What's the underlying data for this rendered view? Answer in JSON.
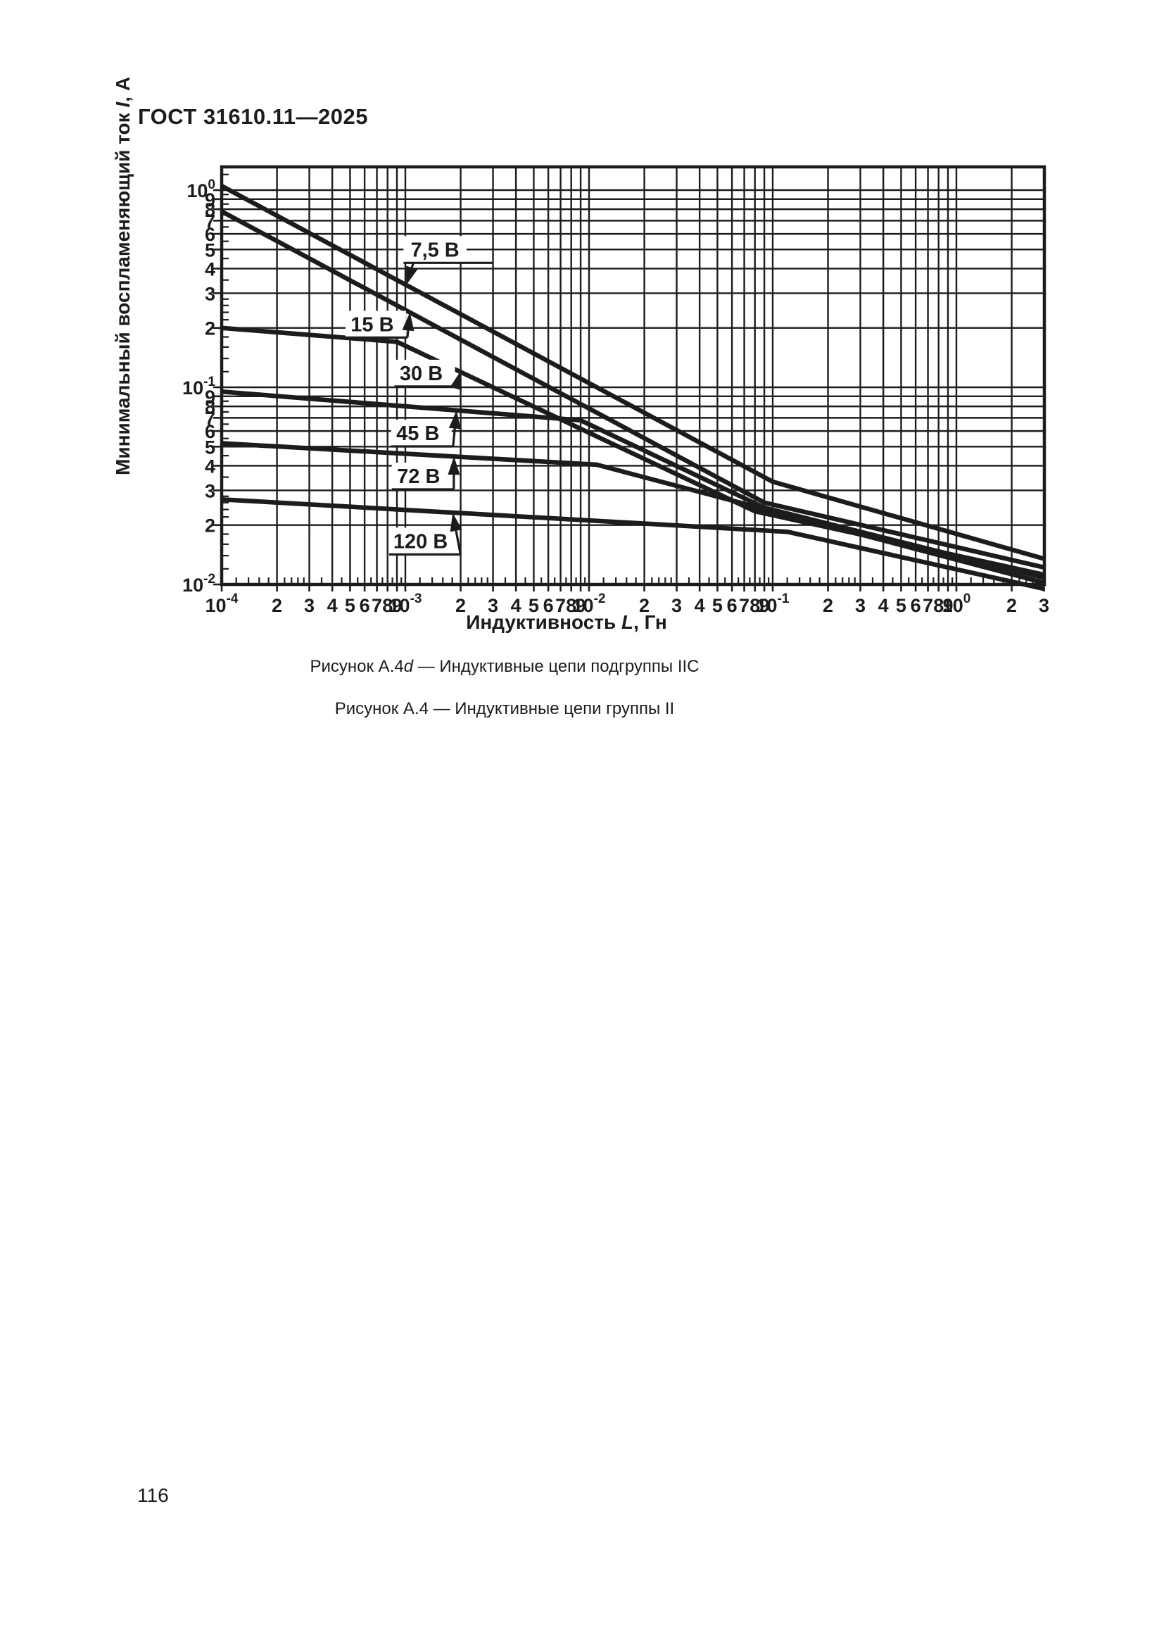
{
  "page": {
    "header": "ГОСТ 31610.11—2025",
    "page_number": "116",
    "captions": [
      {
        "prefix": "Рисунок А.4",
        "italic": "d",
        "suffix": " — Индуктивные цепи подгруппы IIC"
      },
      {
        "prefix": "Рисунок А.4",
        "italic": "",
        "suffix": " — Индуктивные цепи группы II"
      }
    ]
  },
  "colors": {
    "ink": "#1c1c1c",
    "paper": "#ffffff"
  },
  "chart_data": {
    "type": "line",
    "scale": "log-log",
    "grid": "on",
    "x_axis": {
      "title_prefix": "Индуктивность ",
      "title_var": "L",
      "title_suffix": ", Гн",
      "min": 0.0001,
      "max": 3,
      "ticks": [
        {
          "v": 0.0001,
          "t": "10",
          "e": "-4"
        },
        {
          "v": 0.0002,
          "t": "2"
        },
        {
          "v": 0.0003,
          "t": "3"
        },
        {
          "v": 0.0004,
          "t": "4"
        },
        {
          "v": 0.0005,
          "t": "5"
        },
        {
          "v": 0.0006,
          "t": "6"
        },
        {
          "v": 0.0007,
          "t": "7"
        },
        {
          "v": 0.0008,
          "t": "8"
        },
        {
          "v": 0.0009,
          "t": "9"
        },
        {
          "v": 0.001,
          "t": "10",
          "e": "-3"
        },
        {
          "v": 0.002,
          "t": "2"
        },
        {
          "v": 0.003,
          "t": "3"
        },
        {
          "v": 0.004,
          "t": "4"
        },
        {
          "v": 0.005,
          "t": "5"
        },
        {
          "v": 0.006,
          "t": "6"
        },
        {
          "v": 0.007,
          "t": "7"
        },
        {
          "v": 0.008,
          "t": "8"
        },
        {
          "v": 0.009,
          "t": "9"
        },
        {
          "v": 0.01,
          "t": "10",
          "e": "-2"
        },
        {
          "v": 0.02,
          "t": "2"
        },
        {
          "v": 0.03,
          "t": "3"
        },
        {
          "v": 0.04,
          "t": "4"
        },
        {
          "v": 0.05,
          "t": "5"
        },
        {
          "v": 0.06,
          "t": "6"
        },
        {
          "v": 0.07,
          "t": "7"
        },
        {
          "v": 0.08,
          "t": "8"
        },
        {
          "v": 0.09,
          "t": "9"
        },
        {
          "v": 0.1,
          "t": "10",
          "e": "-1"
        },
        {
          "v": 0.2,
          "t": "2"
        },
        {
          "v": 0.3,
          "t": "3"
        },
        {
          "v": 0.4,
          "t": "4"
        },
        {
          "v": 0.5,
          "t": "5"
        },
        {
          "v": 0.6,
          "t": "6"
        },
        {
          "v": 0.7,
          "t": "7"
        },
        {
          "v": 0.8,
          "t": "8"
        },
        {
          "v": 0.9,
          "t": "9"
        },
        {
          "v": 1,
          "t": "10",
          "e": "0"
        },
        {
          "v": 2,
          "t": "2"
        },
        {
          "v": 3,
          "t": "3"
        }
      ]
    },
    "y_axis": {
      "title_prefix": "Минимальный воспламеняющий ток ",
      "title_var": "I",
      "title_suffix": ", А",
      "min": 0.01,
      "max": 1.31,
      "ticks": [
        {
          "v": 1,
          "t": "10",
          "e": "0"
        },
        {
          "v": 0.9,
          "t": "9"
        },
        {
          "v": 0.8,
          "t": "8"
        },
        {
          "v": 0.7,
          "t": "7"
        },
        {
          "v": 0.6,
          "t": "6"
        },
        {
          "v": 0.5,
          "t": "5"
        },
        {
          "v": 0.4,
          "t": "4"
        },
        {
          "v": 0.3,
          "t": "3"
        },
        {
          "v": 0.2,
          "t": "2"
        },
        {
          "v": 0.1,
          "t": "10",
          "e": "-1"
        },
        {
          "v": 0.09,
          "t": "9"
        },
        {
          "v": 0.08,
          "t": "8"
        },
        {
          "v": 0.07,
          "t": "7"
        },
        {
          "v": 0.06,
          "t": "6"
        },
        {
          "v": 0.05,
          "t": "5"
        },
        {
          "v": 0.04,
          "t": "4"
        },
        {
          "v": 0.03,
          "t": "3"
        },
        {
          "v": 0.02,
          "t": "2"
        },
        {
          "v": 0.01,
          "t": "10",
          "e": "-2"
        }
      ]
    },
    "series": [
      {
        "name": "7,5 В",
        "voltage_V": 7.5,
        "points": [
          [
            0.0001,
            1.05
          ],
          [
            0.1,
            0.0332
          ],
          [
            3,
            0.0135
          ]
        ]
      },
      {
        "name": "15 В",
        "voltage_V": 15,
        "points": [
          [
            0.0001,
            0.78
          ],
          [
            0.09,
            0.026
          ],
          [
            3,
            0.0122
          ]
        ]
      },
      {
        "name": "30 В",
        "voltage_V": 30,
        "points": [
          [
            0.0001,
            0.2
          ],
          [
            0.0009,
            0.17
          ],
          [
            0.08,
            0.0235
          ],
          [
            3,
            0.0112
          ]
        ]
      },
      {
        "name": "45 В",
        "voltage_V": 45,
        "points": [
          [
            0.0001,
            0.095
          ],
          [
            0.009,
            0.068
          ],
          [
            0.09,
            0.0245
          ],
          [
            3,
            0.0108
          ]
        ]
      },
      {
        "name": "72 В",
        "voltage_V": 72,
        "points": [
          [
            0.0001,
            0.052
          ],
          [
            0.011,
            0.0405
          ],
          [
            0.1,
            0.0235
          ],
          [
            3,
            0.0102
          ]
        ]
      },
      {
        "name": "120 В",
        "voltage_V": 120,
        "points": [
          [
            0.0001,
            0.027
          ],
          [
            0.12,
            0.0185
          ],
          [
            3,
            0.0095
          ]
        ]
      }
    ],
    "annotations": [
      {
        "text": "7,5 В",
        "box": [
          0.00145,
          0.5
        ],
        "tip": [
          0.00101,
          0.33
        ],
        "dir": "down-left"
      },
      {
        "text": "15 В",
        "box": [
          0.00066,
          0.209
        ],
        "tip": [
          0.00106,
          0.24
        ],
        "dir": "up-right"
      },
      {
        "text": "30 В",
        "box": [
          0.00122,
          0.118
        ],
        "tip": [
          0.002,
          0.121
        ],
        "dir": "up-right"
      },
      {
        "text": "45 В",
        "box": [
          0.00117,
          0.0586
        ],
        "tip": [
          0.0019,
          0.0764
        ],
        "dir": "up-right"
      },
      {
        "text": "72 В",
        "box": [
          0.00118,
          0.0355
        ],
        "tip": [
          0.00184,
          0.0446
        ],
        "dir": "up-right"
      },
      {
        "text": "120 В",
        "box": [
          0.00121,
          0.0166
        ],
        "tip": [
          0.00181,
          0.0231
        ],
        "dir": "up-right"
      }
    ]
  }
}
